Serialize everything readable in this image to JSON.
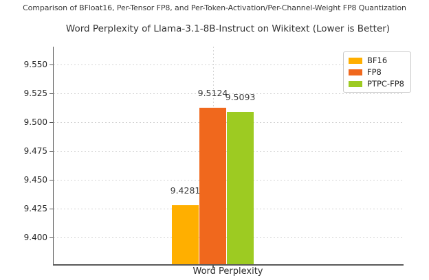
{
  "suptitle": "Comparison of BFloat16, Per-Tensor FP8, and Per-Token-Activation/Per-Channel-Weight FP8 Quantization",
  "chart_data": {
    "type": "bar",
    "title": "Word Perplexity of Llama-3.1-8B-Instruct on Wikitext (Lower is Better)",
    "xlabel": "Word Perplexity",
    "ylabel": "",
    "categories": [
      "Word Perplexity"
    ],
    "series": [
      {
        "name": "BF16",
        "values": [
          9.4281
        ],
        "value_label": "9.4281",
        "color": "#FFAF00"
      },
      {
        "name": "FP8",
        "values": [
          9.5124
        ],
        "value_label": "9.5124",
        "color": "#F0681D"
      },
      {
        "name": "PTPC-FP8",
        "values": [
          9.5093
        ],
        "value_label": "9.5093",
        "color": "#9DCB22"
      }
    ],
    "ylim": [
      9.377,
      9.5655
    ],
    "yticks": [
      9.4,
      9.425,
      9.45,
      9.475,
      9.5,
      9.525,
      9.55
    ],
    "ytick_labels": [
      "9.400",
      "9.425",
      "9.450",
      "9.475",
      "9.500",
      "9.525",
      "9.550"
    ],
    "grid": true,
    "grid_style": "dashed",
    "legend": {
      "position": "upper right",
      "entries": [
        "BF16",
        "FP8",
        "PTPC-FP8"
      ]
    },
    "colors": {
      "spine": "#595959",
      "gridline": "#d4d4d4",
      "text": "#262626"
    }
  }
}
